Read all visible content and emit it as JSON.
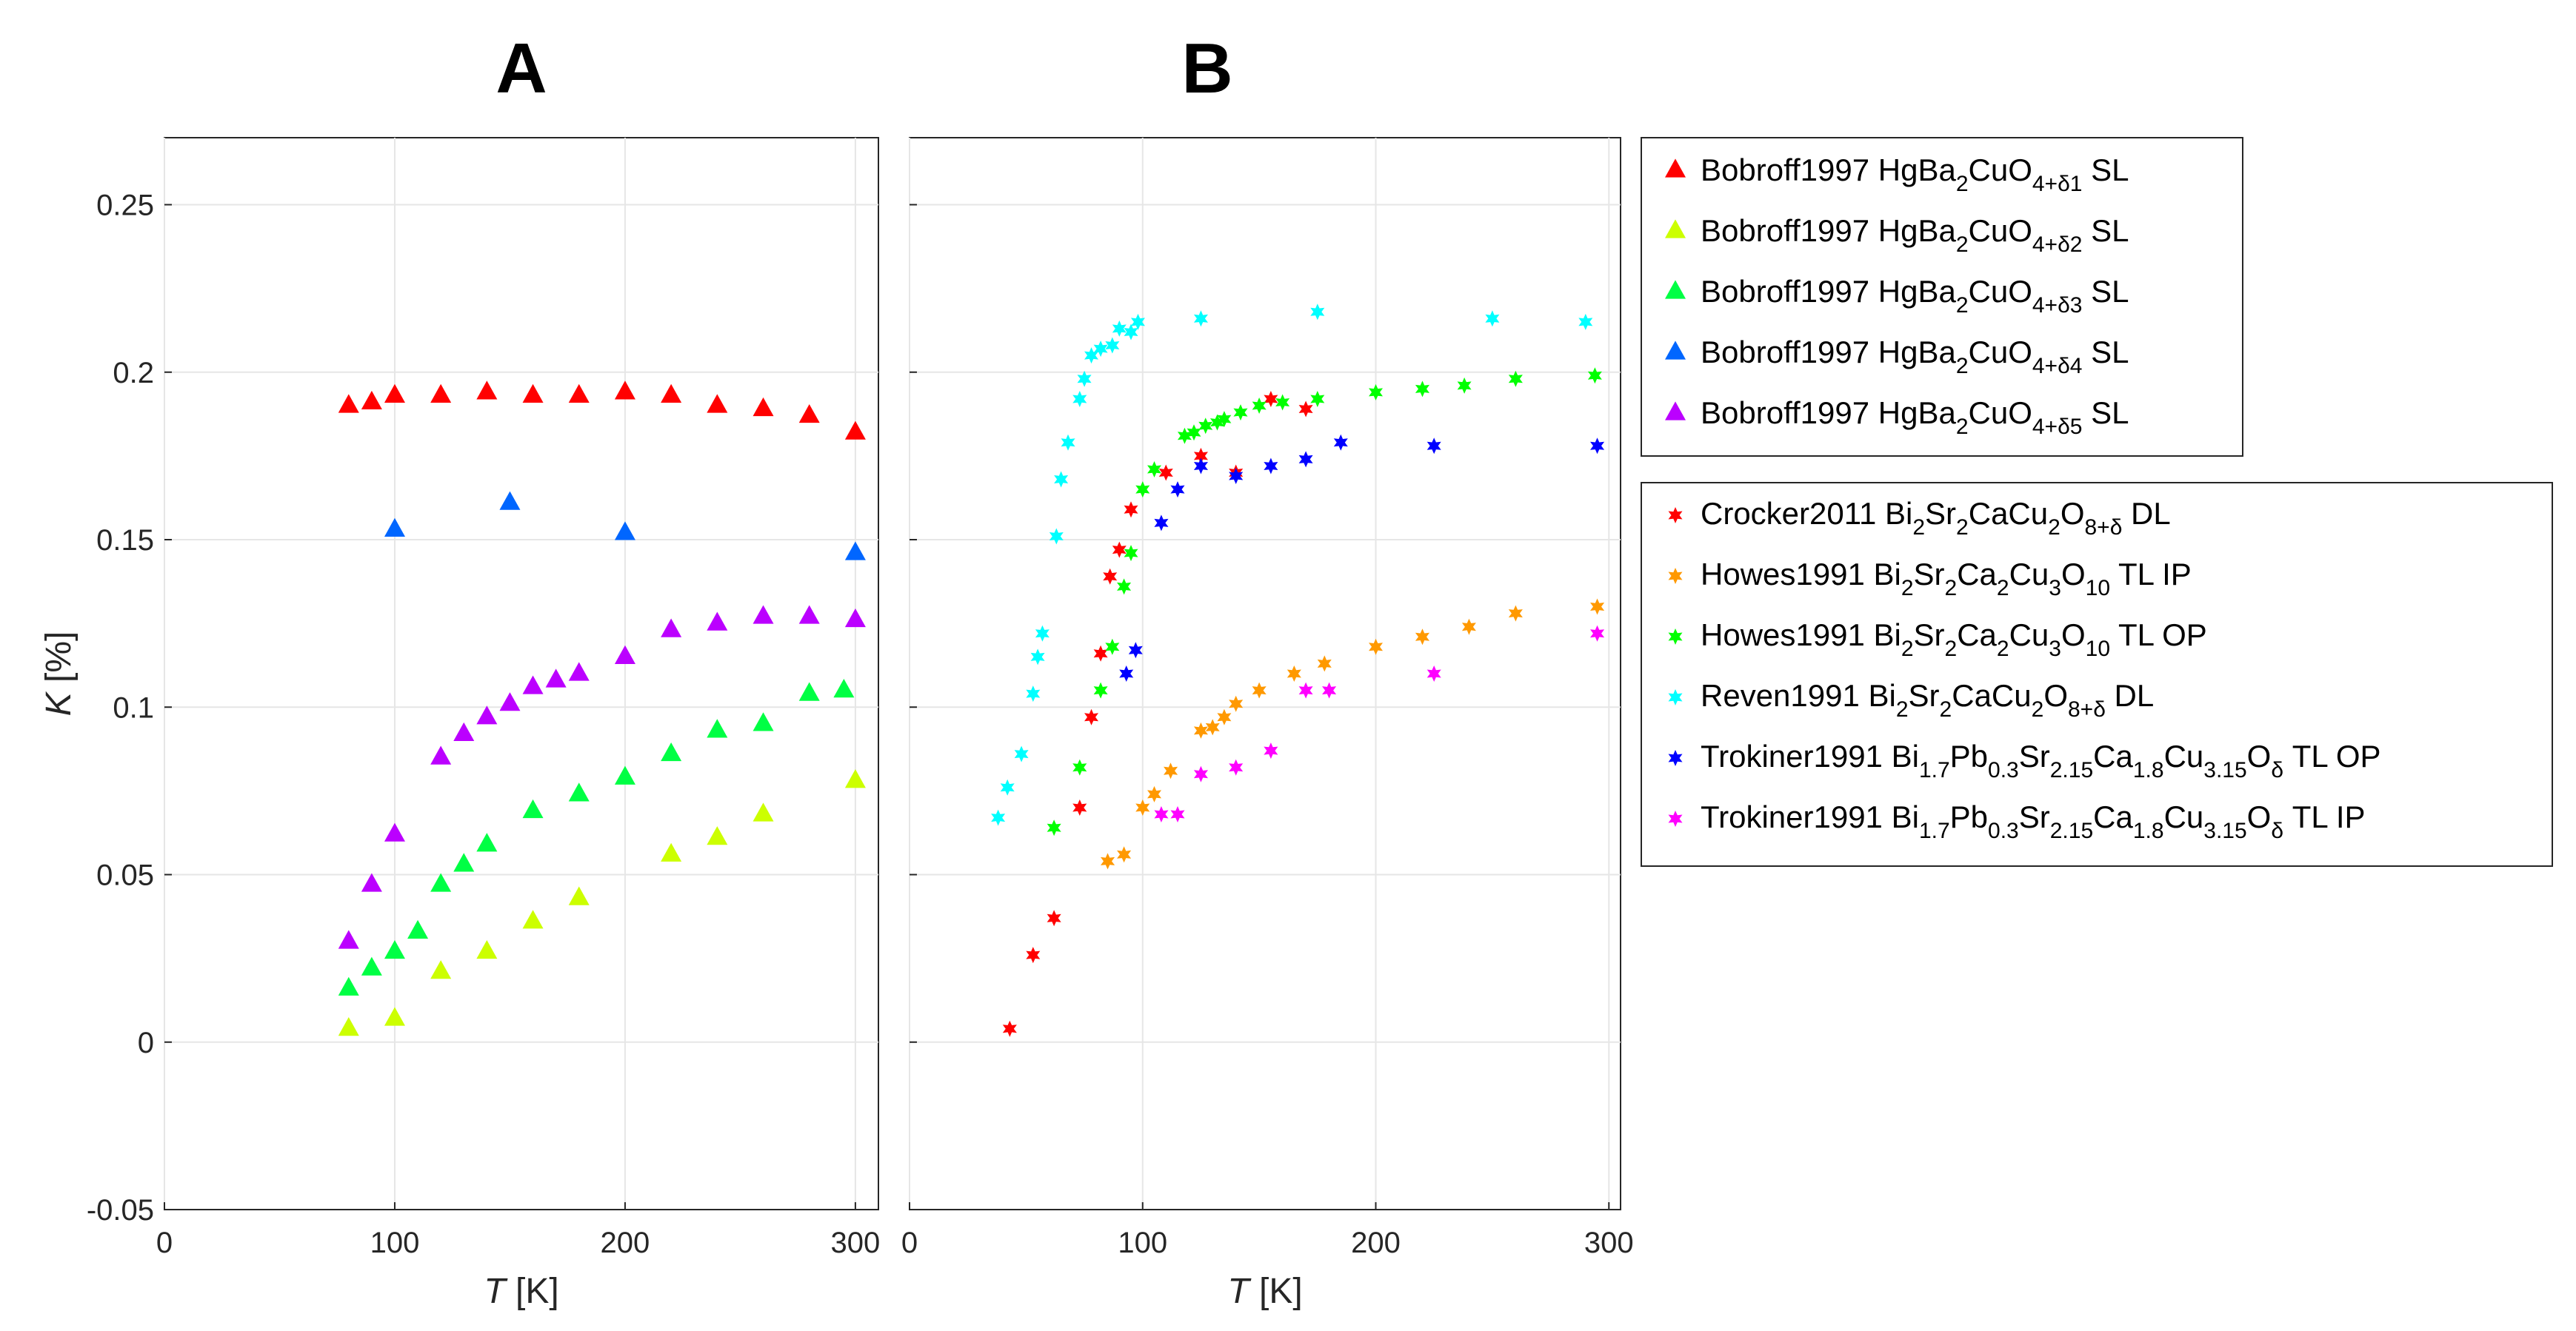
{
  "chart_data": [
    {
      "type": "scatter",
      "title": "A",
      "xlabel": "T [K]",
      "ylabel": "K [%]",
      "xlim": [
        0,
        310
      ],
      "ylim": [
        -0.05,
        0.27
      ],
      "xticks": [
        0,
        100,
        200,
        300
      ],
      "xtick_labels": [
        "0",
        "100",
        "200",
        "300"
      ],
      "yticks": [
        -0.05,
        0,
        0.05,
        0.1,
        0.15,
        0.2,
        0.25
      ],
      "ytick_labels": [
        "-0.05",
        "0",
        "0.05",
        "0.1",
        "0.15",
        "0.2",
        "0.25"
      ],
      "grid": true,
      "series": [
        {
          "name": "Bobroff1997 HgBa2CuO4+δ1 SL",
          "marker": "triangle",
          "color": "#ff0000",
          "x": [
            80,
            90,
            100,
            120,
            140,
            160,
            180,
            200,
            220,
            240,
            260,
            280,
            300
          ],
          "y": [
            0.19,
            0.191,
            0.193,
            0.193,
            0.194,
            0.193,
            0.193,
            0.194,
            0.193,
            0.19,
            0.189,
            0.187,
            0.182
          ]
        },
        {
          "name": "Bobroff1997 HgBa2CuO4+δ2 SL",
          "marker": "triangle",
          "color": "#ccff00",
          "x": [
            80,
            100,
            120,
            140,
            160,
            180,
            220,
            240,
            260,
            300
          ],
          "y": [
            0.004,
            0.007,
            0.021,
            0.027,
            0.036,
            0.043,
            0.056,
            0.061,
            0.068,
            0.078
          ]
        },
        {
          "name": "Bobroff1997 HgBa2CuO4+δ3 SL",
          "marker": "triangle",
          "color": "#00ff44",
          "x": [
            80,
            90,
            100,
            110,
            120,
            130,
            140,
            160,
            180,
            200,
            220,
            240,
            260,
            280,
            295
          ],
          "y": [
            0.016,
            0.022,
            0.027,
            0.033,
            0.047,
            0.053,
            0.059,
            0.069,
            0.074,
            0.079,
            0.086,
            0.093,
            0.095,
            0.104,
            0.105
          ]
        },
        {
          "name": "Bobroff1997 HgBa2CuO4+δ4 SL",
          "marker": "triangle",
          "color": "#0066ff",
          "x": [
            100,
            150,
            200,
            300
          ],
          "y": [
            0.153,
            0.161,
            0.152,
            0.146
          ]
        },
        {
          "name": "Bobroff1997 HgBa2CuO4+δ5 SL",
          "marker": "triangle",
          "color": "#bb00ff",
          "x": [
            80,
            90,
            100,
            120,
            130,
            140,
            150,
            160,
            170,
            180,
            200,
            220,
            240,
            260,
            280,
            300
          ],
          "y": [
            0.03,
            0.047,
            0.062,
            0.085,
            0.092,
            0.097,
            0.101,
            0.106,
            0.108,
            0.11,
            0.115,
            0.123,
            0.125,
            0.127,
            0.127,
            0.126
          ]
        }
      ],
      "legend": {
        "position": "right",
        "entries": [
          {
            "text": "Bobroff1997 HgBa",
            "sub1": "2",
            "mid": "CuO",
            "sub2": "4+δ1",
            "tail": " SL"
          },
          {
            "text": "Bobroff1997 HgBa",
            "sub1": "2",
            "mid": "CuO",
            "sub2": "4+δ2",
            "tail": " SL"
          },
          {
            "text": "Bobroff1997 HgBa",
            "sub1": "2",
            "mid": "CuO",
            "sub2": "4+δ3",
            "tail": " SL"
          },
          {
            "text": "Bobroff1997 HgBa",
            "sub1": "2",
            "mid": "CuO",
            "sub2": "4+δ4",
            "tail": " SL"
          },
          {
            "text": "Bobroff1997 HgBa",
            "sub1": "2",
            "mid": "CuO",
            "sub2": "4+δ5",
            "tail": " SL"
          }
        ]
      }
    },
    {
      "type": "scatter",
      "title": "B",
      "xlabel": "T [K]",
      "xlim": [
        0,
        305
      ],
      "ylim": [
        -0.05,
        0.27
      ],
      "xticks": [
        0,
        100,
        200,
        300
      ],
      "xtick_labels": [
        "0",
        "100",
        "200",
        "300"
      ],
      "grid": true,
      "series": [
        {
          "name": "Crocker2011 Bi2Sr2CaCu2O8+δ DL",
          "marker": "star",
          "color": "#ff0000",
          "x": [
            43,
            53,
            62,
            73,
            78,
            82,
            86,
            90,
            95,
            110,
            125,
            140,
            155,
            170
          ],
          "y": [
            0.004,
            0.026,
            0.037,
            0.07,
            0.097,
            0.116,
            0.139,
            0.147,
            0.159,
            0.17,
            0.175,
            0.17,
            0.192,
            0.189
          ]
        },
        {
          "name": "Howes1991 Bi2Sr2Ca2Cu3O10 TL IP",
          "marker": "star",
          "color": "#ff9900",
          "x": [
            85,
            92,
            100,
            105,
            112,
            125,
            130,
            135,
            140,
            150,
            165,
            178,
            200,
            220,
            240,
            260,
            295
          ],
          "y": [
            0.054,
            0.056,
            0.07,
            0.074,
            0.081,
            0.093,
            0.094,
            0.097,
            0.101,
            0.105,
            0.11,
            0.113,
            0.118,
            0.121,
            0.124,
            0.128,
            0.13
          ]
        },
        {
          "name": "Howes1991 Bi2Sr2Ca2Cu3O10 TL OP",
          "marker": "star",
          "color": "#00ff00",
          "x": [
            62,
            73,
            82,
            87,
            92,
            95,
            100,
            105,
            118,
            122,
            127,
            132,
            135,
            142,
            150,
            160,
            175,
            200,
            220,
            238,
            260,
            294
          ],
          "y": [
            0.064,
            0.082,
            0.105,
            0.118,
            0.136,
            0.146,
            0.165,
            0.171,
            0.181,
            0.182,
            0.184,
            0.185,
            0.186,
            0.188,
            0.19,
            0.191,
            0.192,
            0.194,
            0.195,
            0.196,
            0.198,
            0.199
          ]
        },
        {
          "name": "Reven1991 Bi2Sr2CaCu2O8+δ DL",
          "marker": "star",
          "color": "#00ffff",
          "x": [
            38,
            42,
            48,
            53,
            55,
            57,
            63,
            65,
            68,
            73,
            75,
            78,
            82,
            87,
            90,
            95,
            98,
            125,
            175,
            250,
            290
          ],
          "y": [
            0.067,
            0.076,
            0.086,
            0.104,
            0.115,
            0.122,
            0.151,
            0.168,
            0.179,
            0.192,
            0.198,
            0.205,
            0.207,
            0.208,
            0.213,
            0.212,
            0.215,
            0.216,
            0.218,
            0.216,
            0.215
          ]
        },
        {
          "name": "Trokiner1991 Bi1.7Pb0.3Sr2.15Ca1.8Cu3.15Oδ TL OP",
          "marker": "star",
          "color": "#0000ff",
          "x": [
            93,
            97,
            108,
            115,
            125,
            140,
            155,
            170,
            185,
            225,
            295
          ],
          "y": [
            0.11,
            0.117,
            0.155,
            0.165,
            0.172,
            0.169,
            0.172,
            0.174,
            0.179,
            0.178,
            0.178
          ]
        },
        {
          "name": "Trokiner1991 Bi1.7Pb0.3Sr2.15Ca1.8Cu3.15Oδ TL IP",
          "marker": "star",
          "color": "#ff00ff",
          "x": [
            108,
            115,
            125,
            140,
            155,
            170,
            180,
            225,
            295
          ],
          "y": [
            0.068,
            0.068,
            0.08,
            0.082,
            0.087,
            0.105,
            0.105,
            0.11,
            0.122
          ]
        }
      ],
      "legend": {
        "position": "right",
        "entries": [
          {
            "parts": [
              [
                "Crocker2011 Bi",
                ""
              ],
              [
                "2",
                "sub"
              ],
              [
                "Sr",
                ""
              ],
              [
                "2",
                "sub"
              ],
              [
                "CaCu",
                ""
              ],
              [
                "2",
                "sub"
              ],
              [
                "O",
                ""
              ],
              [
                "8+δ",
                "sub"
              ],
              [
                " DL",
                ""
              ]
            ]
          },
          {
            "parts": [
              [
                "Howes1991 Bi",
                ""
              ],
              [
                "2",
                "sub"
              ],
              [
                "Sr",
                ""
              ],
              [
                "2",
                "sub"
              ],
              [
                "Ca",
                ""
              ],
              [
                "2",
                "sub"
              ],
              [
                "Cu",
                ""
              ],
              [
                "3",
                "sub"
              ],
              [
                "O",
                ""
              ],
              [
                "10",
                "sub"
              ],
              [
                " TL IP",
                ""
              ]
            ]
          },
          {
            "parts": [
              [
                "Howes1991 Bi",
                ""
              ],
              [
                "2",
                "sub"
              ],
              [
                "Sr",
                ""
              ],
              [
                "2",
                "sub"
              ],
              [
                "Ca",
                ""
              ],
              [
                "2",
                "sub"
              ],
              [
                "Cu",
                ""
              ],
              [
                "3",
                "sub"
              ],
              [
                "O",
                ""
              ],
              [
                "10",
                "sub"
              ],
              [
                " TL OP",
                ""
              ]
            ]
          },
          {
            "parts": [
              [
                "Reven1991 Bi",
                ""
              ],
              [
                "2",
                "sub"
              ],
              [
                "Sr",
                ""
              ],
              [
                "2",
                "sub"
              ],
              [
                "CaCu",
                ""
              ],
              [
                "2",
                "sub"
              ],
              [
                "O",
                ""
              ],
              [
                "8+δ",
                "sub"
              ],
              [
                " DL",
                ""
              ]
            ]
          },
          {
            "parts": [
              [
                "Trokiner1991 Bi",
                ""
              ],
              [
                "1.7",
                "sub"
              ],
              [
                "Pb",
                ""
              ],
              [
                "0.3",
                "sub"
              ],
              [
                "Sr",
                ""
              ],
              [
                "2.15",
                "sub"
              ],
              [
                "Ca",
                ""
              ],
              [
                "1.8",
                "sub"
              ],
              [
                "Cu",
                ""
              ],
              [
                "3.15",
                "sub"
              ],
              [
                "O",
                ""
              ],
              [
                "δ",
                "sub"
              ],
              [
                " TL OP",
                ""
              ]
            ]
          },
          {
            "parts": [
              [
                "Trokiner1991 Bi",
                ""
              ],
              [
                "1.7",
                "sub"
              ],
              [
                "Pb",
                ""
              ],
              [
                "0.3",
                "sub"
              ],
              [
                "Sr",
                ""
              ],
              [
                "2.15",
                "sub"
              ],
              [
                "Ca",
                ""
              ],
              [
                "1.8",
                "sub"
              ],
              [
                "Cu",
                ""
              ],
              [
                "3.15",
                "sub"
              ],
              [
                "O",
                ""
              ],
              [
                "δ",
                "sub"
              ],
              [
                " TL IP",
                ""
              ]
            ]
          }
        ]
      }
    }
  ]
}
